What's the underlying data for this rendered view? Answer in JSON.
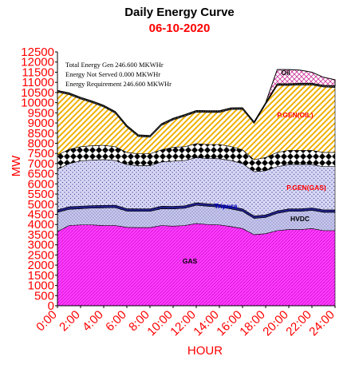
{
  "chart_data": {
    "type": "area",
    "title": "Daily Energy Curve",
    "subtitle": "06-10-2020",
    "xlabel": "HOUR",
    "ylabel": "MW",
    "ylim": [
      0,
      12500
    ],
    "xlim": [
      0,
      24
    ],
    "grid": false,
    "x_tick_labels": [
      "0:00",
      "2:00",
      "4:00",
      "6:00",
      "8:00",
      "10:00",
      "12:00",
      "14:00",
      "16:00",
      "18:00",
      "20:00",
      "22:00",
      "24:00"
    ],
    "y_tick_labels": [
      "0",
      "500",
      "1000",
      "1500",
      "2000",
      "2500",
      "3000",
      "3500",
      "4000",
      "4500",
      "5000",
      "5500",
      "6000",
      "6500",
      "7000",
      "7500",
      "8000",
      "8500",
      "9000",
      "9500",
      "10000",
      "10500",
      "11000",
      "11500",
      "12000",
      "12500"
    ],
    "annotations": [
      "Total Energy Gen 246.600 MKWHr",
      "Energy Not Served  0.000 MKWHr",
      "Energy Requirement    246.600 MKWHr"
    ],
    "x": [
      0,
      1,
      2,
      3,
      4,
      5,
      6,
      7,
      8,
      9,
      10,
      11,
      12,
      13,
      14,
      15,
      16,
      17,
      18,
      19,
      20,
      21,
      22,
      23,
      24
    ],
    "series": [
      {
        "name": "GAS",
        "color": "#ff40ff",
        "pattern": "gas",
        "values": [
          3650,
          3950,
          3980,
          3980,
          3950,
          3950,
          3860,
          3850,
          3850,
          3950,
          3920,
          3950,
          4050,
          4000,
          3980,
          3900,
          3800,
          3500,
          3550,
          3700,
          3750,
          3750,
          3800,
          3700,
          3700
        ]
      },
      {
        "name": "HVDC",
        "color": "#bbbbee",
        "pattern": "hvdc",
        "values": [
          950,
          800,
          800,
          830,
          870,
          880,
          800,
          800,
          800,
          830,
          850,
          850,
          900,
          900,
          880,
          870,
          850,
          800,
          800,
          850,
          900,
          900,
          900,
          900,
          900
        ]
      },
      {
        "name": "Tripura",
        "color": "#000080",
        "pattern": "tripura",
        "values": [
          120,
          120,
          120,
          120,
          120,
          120,
          120,
          120,
          120,
          120,
          120,
          120,
          120,
          120,
          120,
          120,
          120,
          120,
          120,
          120,
          120,
          120,
          120,
          120,
          120
        ]
      },
      {
        "name": "P.GEN(GAS)",
        "color": "#cfcff0",
        "pattern": "pgas",
        "values": [
          2000,
          2130,
          2230,
          2240,
          2260,
          2200,
          2170,
          2130,
          2130,
          2180,
          2230,
          2230,
          2230,
          2230,
          2260,
          2260,
          2230,
          2180,
          2180,
          2180,
          2180,
          2180,
          2130,
          2130,
          2130
        ]
      },
      {
        "name": "",
        "color": "#000000",
        "pattern": "checker",
        "values": [
          700,
          700,
          700,
          710,
          700,
          680,
          600,
          580,
          580,
          600,
          680,
          680,
          680,
          690,
          700,
          690,
          680,
          590,
          650,
          700,
          700,
          700,
          700,
          700,
          700
        ]
      },
      {
        "name": "P.GEN(OIL)",
        "color": "#ffc000",
        "pattern": "oil",
        "values": [
          3100,
          2700,
          2350,
          2120,
          1890,
          1650,
          1250,
          850,
          820,
          1200,
          1350,
          1500,
          1550,
          1580,
          1580,
          1820,
          1990,
          1790,
          2620,
          3300,
          3200,
          3220,
          3220,
          3220,
          3200
        ]
      },
      {
        "name": "",
        "color": "#404040",
        "pattern": "dark",
        "values": [
          80,
          80,
          80,
          80,
          80,
          80,
          80,
          80,
          80,
          80,
          80,
          80,
          80,
          80,
          80,
          80,
          80,
          80,
          80,
          80,
          80,
          80,
          80,
          80,
          80
        ]
      },
      {
        "name": "Oil",
        "color": "#cc66cc",
        "pattern": "cross",
        "values": [
          0,
          0,
          0,
          0,
          0,
          0,
          0,
          0,
          0,
          0,
          0,
          0,
          0,
          0,
          0,
          0,
          0,
          0,
          0,
          700,
          700,
          650,
          550,
          400,
          300
        ]
      }
    ],
    "series_labels": {
      "gas": "GAS",
      "hvdc": "HVDC",
      "tripura": "Tripura",
      "pgas": "P.GEN(GAS)",
      "pgoil": "P.GEN(OIL)",
      "oil": "Oil"
    },
    "colors": {
      "axis_text": "#ff0000",
      "title_date": "#ff0000",
      "label_blue": "#0000cc"
    }
  }
}
